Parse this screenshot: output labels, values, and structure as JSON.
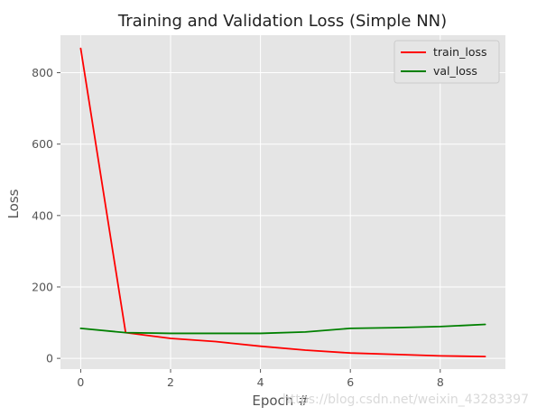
{
  "chart_data": {
    "type": "line",
    "title": "Training and Validation Loss (Simple NN)",
    "xlabel": "Epoch #",
    "ylabel": "Loss",
    "x": [
      0,
      1,
      2,
      3,
      4,
      5,
      6,
      7,
      8,
      9
    ],
    "xlim": [
      -0.45,
      9.45
    ],
    "ylim": [
      -30,
      905
    ],
    "xticks": [
      0,
      2,
      4,
      6,
      8
    ],
    "yticks": [
      0,
      200,
      400,
      600,
      800
    ],
    "grid": true,
    "legend_position": "top-right",
    "series": [
      {
        "name": "train_loss",
        "color": "#ff0000",
        "values": [
          868,
          72,
          56,
          47,
          34,
          23,
          15,
          11,
          7,
          5
        ]
      },
      {
        "name": "val_loss",
        "color": "#008000",
        "values": [
          84,
          72,
          70,
          70,
          70,
          74,
          84,
          86,
          89,
          95
        ]
      }
    ]
  },
  "watermark": "https://blog.csdn.net/weixin_43283397",
  "colors": {
    "plot_background": "#e5e5e5",
    "grid": "#ffffff"
  }
}
